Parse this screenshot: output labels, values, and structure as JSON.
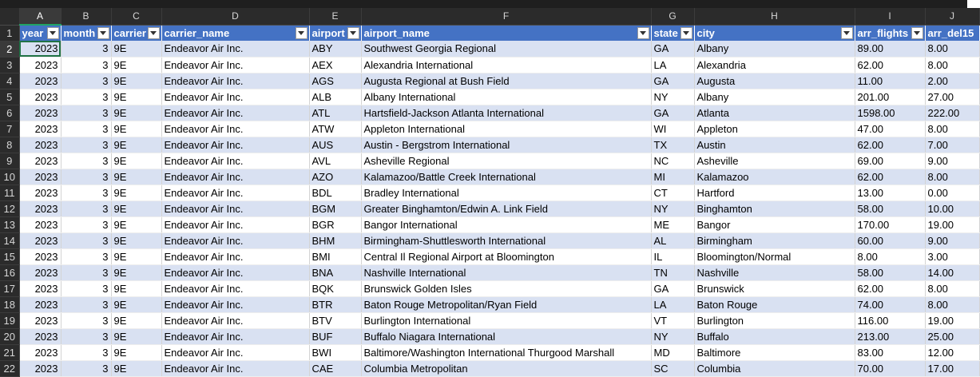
{
  "columns": [
    "A",
    "B",
    "C",
    "D",
    "E",
    "F",
    "G",
    "H",
    "I",
    "J"
  ],
  "headers": [
    "year",
    "month",
    "carrier",
    "carrier_name",
    "airport",
    "airport_name",
    "state",
    "city",
    "arr_flights",
    "arr_del15"
  ],
  "rows": [
    [
      "2023",
      "3",
      "9E",
      "Endeavor Air Inc.",
      "ABY",
      "Southwest Georgia Regional",
      "GA",
      "Albany",
      "89.00",
      "8.00"
    ],
    [
      "2023",
      "3",
      "9E",
      "Endeavor Air Inc.",
      "AEX",
      "Alexandria International",
      "LA",
      "Alexandria",
      "62.00",
      "8.00"
    ],
    [
      "2023",
      "3",
      "9E",
      "Endeavor Air Inc.",
      "AGS",
      "Augusta Regional at Bush Field",
      "GA",
      "Augusta",
      "11.00",
      "2.00"
    ],
    [
      "2023",
      "3",
      "9E",
      "Endeavor Air Inc.",
      "ALB",
      "Albany International",
      "NY",
      "Albany",
      "201.00",
      "27.00"
    ],
    [
      "2023",
      "3",
      "9E",
      "Endeavor Air Inc.",
      "ATL",
      "Hartsfield-Jackson Atlanta International",
      "GA",
      "Atlanta",
      "1598.00",
      "222.00"
    ],
    [
      "2023",
      "3",
      "9E",
      "Endeavor Air Inc.",
      "ATW",
      "Appleton International",
      "WI",
      "Appleton",
      "47.00",
      "8.00"
    ],
    [
      "2023",
      "3",
      "9E",
      "Endeavor Air Inc.",
      "AUS",
      "Austin - Bergstrom International",
      "TX",
      "Austin",
      "62.00",
      "7.00"
    ],
    [
      "2023",
      "3",
      "9E",
      "Endeavor Air Inc.",
      "AVL",
      "Asheville Regional",
      "NC",
      "Asheville",
      "69.00",
      "9.00"
    ],
    [
      "2023",
      "3",
      "9E",
      "Endeavor Air Inc.",
      "AZO",
      "Kalamazoo/Battle Creek International",
      "MI",
      "Kalamazoo",
      "62.00",
      "8.00"
    ],
    [
      "2023",
      "3",
      "9E",
      "Endeavor Air Inc.",
      "BDL",
      "Bradley International",
      "CT",
      "Hartford",
      "13.00",
      "0.00"
    ],
    [
      "2023",
      "3",
      "9E",
      "Endeavor Air Inc.",
      "BGM",
      "Greater Binghamton/Edwin A. Link Field",
      "NY",
      "Binghamton",
      "58.00",
      "10.00"
    ],
    [
      "2023",
      "3",
      "9E",
      "Endeavor Air Inc.",
      "BGR",
      "Bangor International",
      "ME",
      "Bangor",
      "170.00",
      "19.00"
    ],
    [
      "2023",
      "3",
      "9E",
      "Endeavor Air Inc.",
      "BHM",
      "Birmingham-Shuttlesworth International",
      "AL",
      "Birmingham",
      "60.00",
      "9.00"
    ],
    [
      "2023",
      "3",
      "9E",
      "Endeavor Air Inc.",
      "BMI",
      "Central Il Regional Airport at Bloomington",
      "IL",
      "Bloomington/Normal",
      "8.00",
      "3.00"
    ],
    [
      "2023",
      "3",
      "9E",
      "Endeavor Air Inc.",
      "BNA",
      "Nashville International",
      "TN",
      "Nashville",
      "58.00",
      "14.00"
    ],
    [
      "2023",
      "3",
      "9E",
      "Endeavor Air Inc.",
      "BQK",
      "Brunswick Golden Isles",
      "GA",
      "Brunswick",
      "62.00",
      "8.00"
    ],
    [
      "2023",
      "3",
      "9E",
      "Endeavor Air Inc.",
      "BTR",
      "Baton Rouge Metropolitan/Ryan Field",
      "LA",
      "Baton Rouge",
      "74.00",
      "8.00"
    ],
    [
      "2023",
      "3",
      "9E",
      "Endeavor Air Inc.",
      "BTV",
      "Burlington International",
      "VT",
      "Burlington",
      "116.00",
      "19.00"
    ],
    [
      "2023",
      "3",
      "9E",
      "Endeavor Air Inc.",
      "BUF",
      "Buffalo Niagara International",
      "NY",
      "Buffalo",
      "213.00",
      "25.00"
    ],
    [
      "2023",
      "3",
      "9E",
      "Endeavor Air Inc.",
      "BWI",
      "Baltimore/Washington International Thurgood Marshall",
      "MD",
      "Baltimore",
      "83.00",
      "12.00"
    ],
    [
      "2023",
      "3",
      "9E",
      "Endeavor Air Inc.",
      "CAE",
      "Columbia Metropolitan",
      "SC",
      "Columbia",
      "70.00",
      "17.00"
    ]
  ]
}
